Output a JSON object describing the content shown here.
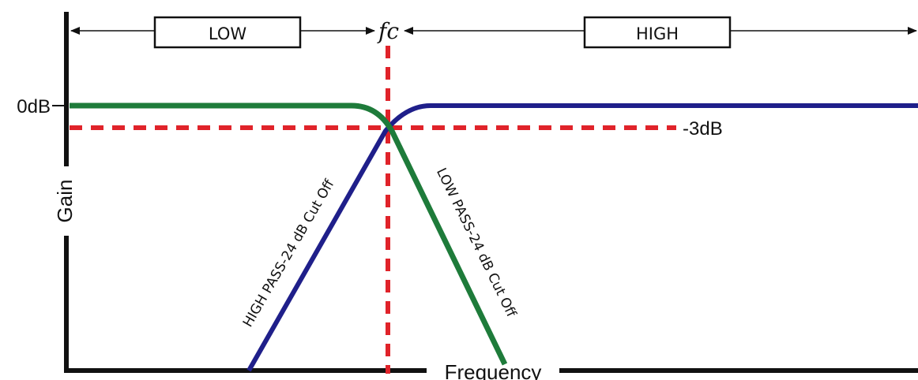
{
  "labels": {
    "low": "LOW",
    "high": "HIGH",
    "fc": "fc",
    "zero_db": "0dB",
    "minus_3db": "-3dB",
    "gain": "Gain",
    "frequency": "Frequency",
    "high_pass": "HIGH PASS-24 dB Cut Off",
    "low_pass": "LOW PASS-24 dB Cut Off"
  },
  "colors": {
    "high_pass_curve": "#1f1f8a",
    "low_pass_curve": "#1e7b3a",
    "dashed_guides": "#e0232a",
    "axes": "#111111"
  }
}
